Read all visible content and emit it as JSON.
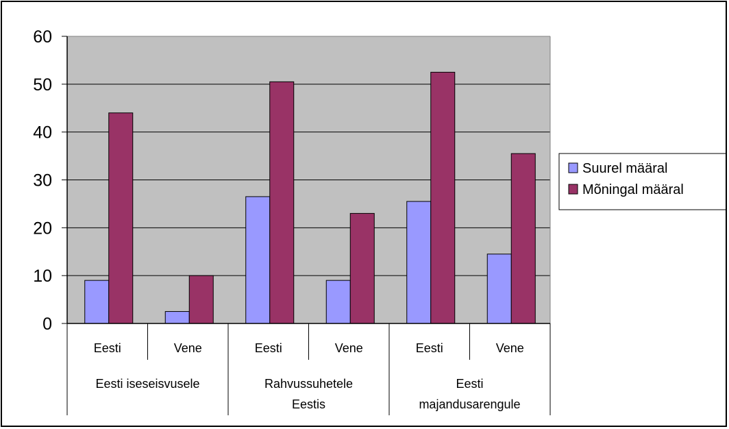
{
  "chart_data": {
    "type": "bar",
    "title": "",
    "xlabel": "",
    "ylabel": "",
    "ylim": [
      0,
      60
    ],
    "y_ticks": [
      0,
      10,
      20,
      30,
      40,
      50,
      60
    ],
    "grid": true,
    "legend_position": "right",
    "categories": [
      "Eesti",
      "Vene",
      "Eesti",
      "Vene",
      "Eesti",
      "Vene"
    ],
    "groups": [
      {
        "label": [
          "Eesti iseseisvusele"
        ],
        "categories": [
          0,
          1
        ]
      },
      {
        "label": [
          "Rahvussuhetele",
          "Eestis"
        ],
        "categories": [
          2,
          3
        ]
      },
      {
        "label": [
          "Eesti",
          "majandusarengule"
        ],
        "categories": [
          4,
          5
        ]
      }
    ],
    "series": [
      {
        "name": "Suurel määral",
        "color": "#9999ff",
        "values": [
          9,
          2.5,
          26.5,
          9,
          25.5,
          14.5
        ]
      },
      {
        "name": "Mõningal määral",
        "color": "#993366",
        "values": [
          44,
          10,
          50.5,
          23,
          52.5,
          35.5
        ]
      }
    ],
    "colors": {
      "plot_background": "#c0c0c0",
      "gridline": "#000000",
      "frame": "#000000"
    }
  }
}
